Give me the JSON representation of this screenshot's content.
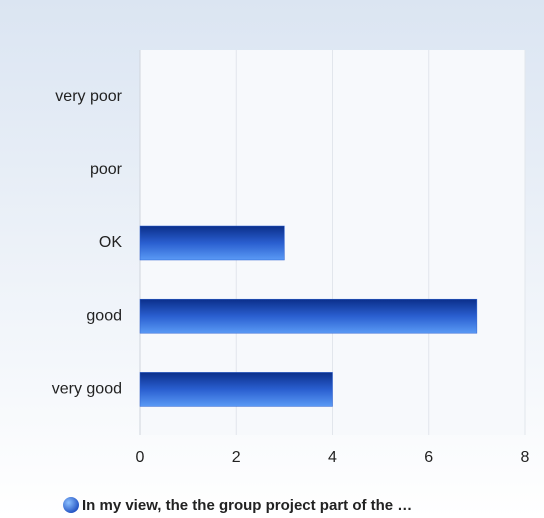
{
  "chart_data": {
    "type": "bar",
    "orientation": "horizontal",
    "categories": [
      "very poor",
      "poor",
      "OK",
      "good",
      "very good"
    ],
    "series": [
      {
        "name": "In my view, the the group project part of the …",
        "color": "#2a5fd0",
        "values": [
          0,
          0,
          3,
          7,
          4
        ]
      }
    ],
    "xlim": [
      0,
      8
    ],
    "xticks": [
      0,
      2,
      4,
      6,
      8
    ],
    "grid": true,
    "legend": "bottom"
  }
}
